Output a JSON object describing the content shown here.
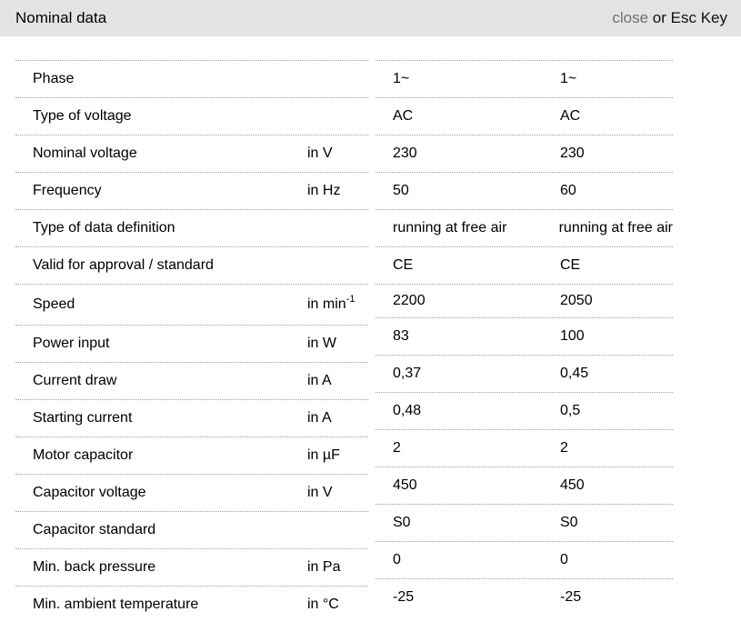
{
  "header": {
    "title": "Nominal data",
    "close_label": "close",
    "close_suffix": " or Esc Key"
  },
  "colors": {
    "header_bg": "#e5e3e1",
    "close_text": "#6f6f6f",
    "row_border": "#9d9d9d",
    "text": "#000000"
  },
  "table": {
    "rows": [
      {
        "label": "Phase",
        "unit": "",
        "v1": "1~",
        "v2": "1~"
      },
      {
        "label": "Type of voltage",
        "unit": "",
        "v1": "AC",
        "v2": "AC"
      },
      {
        "label": "Nominal voltage",
        "unit": "in V",
        "v1": "230",
        "v2": "230"
      },
      {
        "label": "Frequency",
        "unit": "in Hz",
        "v1": "50",
        "v2": "60"
      },
      {
        "label": "Type of data definition",
        "unit": "",
        "v1": "running at free air",
        "v2": "running at free air"
      },
      {
        "label": "Valid for approval / standard",
        "unit": "",
        "v1": "CE",
        "v2": "CE"
      },
      {
        "label": "Speed",
        "unit": "in min",
        "unit_sup": "-1",
        "v1": "2200",
        "v2": "2050"
      },
      {
        "label": "Power input",
        "unit": "in W",
        "v1": "83",
        "v2": "100"
      },
      {
        "label": "Current draw",
        "unit": "in A",
        "v1": "0,37",
        "v2": "0,45"
      },
      {
        "label": "Starting current",
        "unit": "in A",
        "v1": "0,48",
        "v2": "0,5"
      },
      {
        "label": "Motor capacitor",
        "unit": "in µF",
        "v1": "2",
        "v2": "2"
      },
      {
        "label": "Capacitor voltage",
        "unit": "in V",
        "v1": "450",
        "v2": "450"
      },
      {
        "label": "Capacitor standard",
        "unit": "",
        "v1": "S0",
        "v2": "S0"
      },
      {
        "label": "Min. back pressure",
        "unit": "in Pa",
        "v1": "0",
        "v2": "0"
      },
      {
        "label": "Min. ambient temperature",
        "unit": "in °C",
        "v1": "-25",
        "v2": "-25"
      }
    ]
  }
}
